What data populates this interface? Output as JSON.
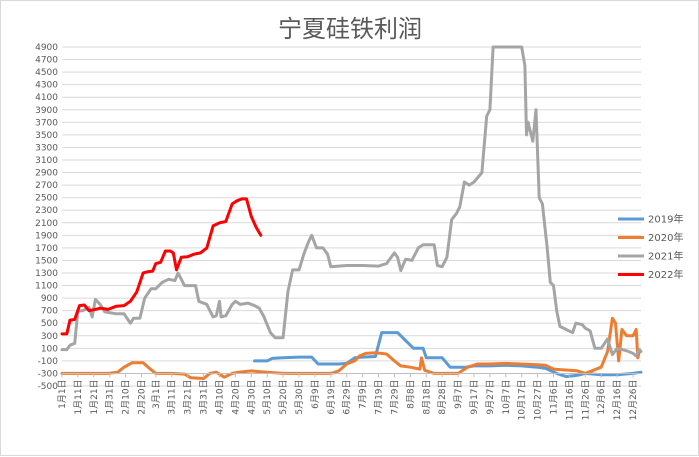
{
  "chart_data": {
    "type": "line",
    "title": "宁夏硅铁利润",
    "xlabel": "",
    "ylabel": "",
    "ylim": [
      -500,
      4900
    ],
    "yticks": [
      -500,
      -300,
      -100,
      100,
      300,
      500,
      700,
      900,
      1100,
      1300,
      1500,
      1700,
      1900,
      2100,
      2300,
      2500,
      2700,
      2900,
      3100,
      3300,
      3500,
      3700,
      3900,
      4100,
      4300,
      4500,
      4700,
      4900
    ],
    "x_unit": "day_of_year",
    "x_range": [
      1,
      365
    ],
    "xticks": [
      {
        "label": "1月1日",
        "x": 1
      },
      {
        "label": "1月11日",
        "x": 11
      },
      {
        "label": "1月21日",
        "x": 21
      },
      {
        "label": "1月31日",
        "x": 31
      },
      {
        "label": "2月10日",
        "x": 41
      },
      {
        "label": "2月20日",
        "x": 51
      },
      {
        "label": "3月1日",
        "x": 60
      },
      {
        "label": "3月11日",
        "x": 70
      },
      {
        "label": "3月21日",
        "x": 80
      },
      {
        "label": "3月31日",
        "x": 90
      },
      {
        "label": "4月10日",
        "x": 100
      },
      {
        "label": "4月20日",
        "x": 110
      },
      {
        "label": "4月30日",
        "x": 120
      },
      {
        "label": "5月10日",
        "x": 130
      },
      {
        "label": "5月20日",
        "x": 140
      },
      {
        "label": "5月30日",
        "x": 150
      },
      {
        "label": "6月9日",
        "x": 160
      },
      {
        "label": "6月19日",
        "x": 170
      },
      {
        "label": "6月29日",
        "x": 180
      },
      {
        "label": "7月9日",
        "x": 190
      },
      {
        "label": "7月19日",
        "x": 200
      },
      {
        "label": "7月29日",
        "x": 210
      },
      {
        "label": "8月8日",
        "x": 220
      },
      {
        "label": "8月18日",
        "x": 230
      },
      {
        "label": "8月28日",
        "x": 240
      },
      {
        "label": "9月7日",
        "x": 250
      },
      {
        "label": "9月17日",
        "x": 260
      },
      {
        "label": "9月27日",
        "x": 270
      },
      {
        "label": "10月7日",
        "x": 280
      },
      {
        "label": "10月17日",
        "x": 290
      },
      {
        "label": "10月27日",
        "x": 300
      },
      {
        "label": "11月6日",
        "x": 310
      },
      {
        "label": "11月16日",
        "x": 320
      },
      {
        "label": "11月26日",
        "x": 330
      },
      {
        "label": "12月6日",
        "x": 340
      },
      {
        "label": "12月16日",
        "x": 350
      },
      {
        "label": "12月26日",
        "x": 360
      }
    ],
    "legend_position": "right",
    "series": [
      {
        "name": "2019年",
        "color": "#5b9bd5",
        "points": [
          [
            122,
            -100
          ],
          [
            130,
            -100
          ],
          [
            133,
            -60
          ],
          [
            140,
            -50
          ],
          [
            150,
            -40
          ],
          [
            158,
            -40
          ],
          [
            162,
            -150
          ],
          [
            170,
            -150
          ],
          [
            175,
            -150
          ],
          [
            180,
            -140
          ],
          [
            185,
            -50
          ],
          [
            190,
            -40
          ],
          [
            198,
            -30
          ],
          [
            202,
            350
          ],
          [
            212,
            350
          ],
          [
            216,
            250
          ],
          [
            222,
            100
          ],
          [
            228,
            100
          ],
          [
            230,
            -50
          ],
          [
            240,
            -50
          ],
          [
            245,
            -200
          ],
          [
            255,
            -200
          ],
          [
            260,
            -180
          ],
          [
            270,
            -180
          ],
          [
            280,
            -170
          ],
          [
            290,
            -180
          ],
          [
            300,
            -200
          ],
          [
            305,
            -220
          ],
          [
            312,
            -300
          ],
          [
            318,
            -350
          ],
          [
            325,
            -330
          ],
          [
            330,
            -300
          ],
          [
            340,
            -320
          ],
          [
            350,
            -320
          ],
          [
            360,
            -300
          ],
          [
            365,
            -280
          ]
        ]
      },
      {
        "name": "2020年",
        "color": "#ed7d31",
        "points": [
          [
            1,
            -300
          ],
          [
            10,
            -300
          ],
          [
            20,
            -300
          ],
          [
            30,
            -300
          ],
          [
            36,
            -280
          ],
          [
            40,
            -200
          ],
          [
            45,
            -130
          ],
          [
            52,
            -130
          ],
          [
            56,
            -220
          ],
          [
            60,
            -300
          ],
          [
            70,
            -300
          ],
          [
            78,
            -310
          ],
          [
            82,
            -370
          ],
          [
            90,
            -380
          ],
          [
            94,
            -300
          ],
          [
            98,
            -280
          ],
          [
            103,
            -360
          ],
          [
            108,
            -300
          ],
          [
            112,
            -280
          ],
          [
            120,
            -260
          ],
          [
            125,
            -270
          ],
          [
            130,
            -280
          ],
          [
            140,
            -300
          ],
          [
            150,
            -300
          ],
          [
            160,
            -300
          ],
          [
            170,
            -300
          ],
          [
            175,
            -260
          ],
          [
            180,
            -150
          ],
          [
            185,
            -100
          ],
          [
            188,
            -20
          ],
          [
            192,
            20
          ],
          [
            198,
            30
          ],
          [
            205,
            10
          ],
          [
            210,
            -100
          ],
          [
            214,
            -180
          ],
          [
            220,
            -200
          ],
          [
            226,
            -230
          ],
          [
            227,
            -50
          ],
          [
            229,
            -250
          ],
          [
            235,
            -300
          ],
          [
            240,
            -300
          ],
          [
            250,
            -300
          ],
          [
            256,
            -200
          ],
          [
            262,
            -150
          ],
          [
            270,
            -150
          ],
          [
            280,
            -140
          ],
          [
            290,
            -150
          ],
          [
            300,
            -160
          ],
          [
            305,
            -170
          ],
          [
            310,
            -230
          ],
          [
            315,
            -240
          ],
          [
            320,
            -250
          ],
          [
            325,
            -260
          ],
          [
            330,
            -300
          ],
          [
            335,
            -250
          ],
          [
            340,
            -200
          ],
          [
            344,
            50
          ],
          [
            347,
            580
          ],
          [
            349,
            500
          ],
          [
            351,
            -100
          ],
          [
            353,
            400
          ],
          [
            356,
            300
          ],
          [
            360,
            300
          ],
          [
            362,
            400
          ],
          [
            363,
            -50
          ],
          [
            364,
            50
          ]
        ]
      },
      {
        "name": "2021年",
        "color": "#a5a5a5",
        "points": [
          [
            1,
            80
          ],
          [
            4,
            80
          ],
          [
            6,
            150
          ],
          [
            9,
            180
          ],
          [
            11,
            700
          ],
          [
            14,
            700
          ],
          [
            18,
            750
          ],
          [
            20,
            600
          ],
          [
            22,
            880
          ],
          [
            25,
            800
          ],
          [
            28,
            680
          ],
          [
            35,
            650
          ],
          [
            40,
            650
          ],
          [
            44,
            500
          ],
          [
            46,
            580
          ],
          [
            50,
            580
          ],
          [
            53,
            900
          ],
          [
            57,
            1050
          ],
          [
            60,
            1050
          ],
          [
            64,
            1150
          ],
          [
            68,
            1200
          ],
          [
            72,
            1180
          ],
          [
            74,
            1300
          ],
          [
            78,
            1100
          ],
          [
            85,
            1100
          ],
          [
            87,
            850
          ],
          [
            92,
            800
          ],
          [
            96,
            600
          ],
          [
            98,
            620
          ],
          [
            100,
            850
          ],
          [
            101,
            600
          ],
          [
            104,
            620
          ],
          [
            108,
            800
          ],
          [
            110,
            850
          ],
          [
            113,
            800
          ],
          [
            118,
            820
          ],
          [
            122,
            780
          ],
          [
            125,
            740
          ],
          [
            128,
            600
          ],
          [
            132,
            350
          ],
          [
            135,
            270
          ],
          [
            140,
            270
          ],
          [
            143,
            1000
          ],
          [
            146,
            1350
          ],
          [
            150,
            1350
          ],
          [
            153,
            1600
          ],
          [
            156,
            1800
          ],
          [
            158,
            1900
          ],
          [
            161,
            1700
          ],
          [
            165,
            1700
          ],
          [
            168,
            1600
          ],
          [
            170,
            1400
          ],
          [
            180,
            1420
          ],
          [
            190,
            1420
          ],
          [
            200,
            1410
          ],
          [
            205,
            1450
          ],
          [
            210,
            1620
          ],
          [
            212,
            1550
          ],
          [
            214,
            1340
          ],
          [
            217,
            1520
          ],
          [
            221,
            1500
          ],
          [
            225,
            1700
          ],
          [
            228,
            1750
          ],
          [
            235,
            1750
          ],
          [
            237,
            1420
          ],
          [
            240,
            1400
          ],
          [
            243,
            1550
          ],
          [
            246,
            2150
          ],
          [
            249,
            2250
          ],
          [
            251,
            2350
          ],
          [
            254,
            2750
          ],
          [
            257,
            2700
          ],
          [
            260,
            2750
          ],
          [
            265,
            2900
          ],
          [
            268,
            3800
          ],
          [
            270,
            3900
          ],
          [
            272,
            4900
          ],
          [
            290,
            4900
          ],
          [
            292,
            4600
          ],
          [
            293,
            3500
          ],
          [
            294,
            3700
          ],
          [
            297,
            3400
          ],
          [
            299,
            3900
          ],
          [
            301,
            2500
          ],
          [
            303,
            2400
          ],
          [
            306,
            1700
          ],
          [
            308,
            1150
          ],
          [
            310,
            1100
          ],
          [
            312,
            700
          ],
          [
            314,
            450
          ],
          [
            318,
            400
          ],
          [
            322,
            350
          ],
          [
            324,
            500
          ],
          [
            328,
            480
          ],
          [
            330,
            420
          ],
          [
            333,
            380
          ],
          [
            336,
            100
          ],
          [
            340,
            100
          ],
          [
            344,
            250
          ],
          [
            347,
            0
          ],
          [
            350,
            100
          ],
          [
            356,
            60
          ],
          [
            360,
            20
          ],
          [
            362,
            -20
          ],
          [
            364,
            80
          ],
          [
            365,
            50
          ]
        ]
      },
      {
        "name": "2022年",
        "color": "#ff0000",
        "points": [
          [
            1,
            330
          ],
          [
            4,
            330
          ],
          [
            6,
            550
          ],
          [
            9,
            560
          ],
          [
            12,
            780
          ],
          [
            15,
            790
          ],
          [
            18,
            700
          ],
          [
            22,
            720
          ],
          [
            25,
            740
          ],
          [
            30,
            720
          ],
          [
            35,
            770
          ],
          [
            40,
            780
          ],
          [
            44,
            850
          ],
          [
            48,
            1000
          ],
          [
            52,
            1300
          ],
          [
            55,
            1320
          ],
          [
            58,
            1330
          ],
          [
            60,
            1450
          ],
          [
            63,
            1470
          ],
          [
            66,
            1650
          ],
          [
            69,
            1650
          ],
          [
            71,
            1620
          ],
          [
            73,
            1350
          ],
          [
            76,
            1550
          ],
          [
            80,
            1560
          ],
          [
            84,
            1600
          ],
          [
            88,
            1620
          ],
          [
            92,
            1700
          ],
          [
            96,
            2050
          ],
          [
            100,
            2100
          ],
          [
            104,
            2120
          ],
          [
            108,
            2400
          ],
          [
            111,
            2450
          ],
          [
            114,
            2480
          ],
          [
            117,
            2480
          ],
          [
            120,
            2200
          ],
          [
            123,
            2030
          ],
          [
            126,
            1900
          ]
        ]
      }
    ]
  }
}
